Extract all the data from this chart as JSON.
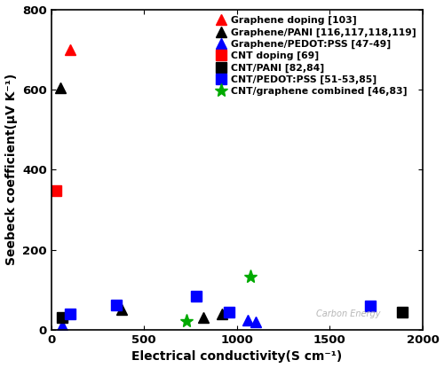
{
  "title": "",
  "xlabel": "Electrical conductivity(S cm⁻¹)",
  "ylabel": "Seebeck coefficient(μV K⁻¹)",
  "xlim": [
    0,
    2000
  ],
  "ylim": [
    0,
    800
  ],
  "xticks": [
    0,
    500,
    1000,
    1500,
    2000
  ],
  "yticks": [
    0,
    200,
    400,
    600,
    800
  ],
  "watermark": "Carbon Energy",
  "series": [
    {
      "label": "Graphene doping [103]",
      "color": "#ff0000",
      "marker": "^",
      "markersize": 8,
      "x": [
        100
      ],
      "y": [
        700
      ]
    },
    {
      "label": "Graphene/PANI [116,117,118,119]",
      "color": "#000000",
      "marker": "^",
      "markersize": 8,
      "x": [
        50,
        380,
        820,
        920
      ],
      "y": [
        605,
        50,
        30,
        40
      ]
    },
    {
      "label": "Graphene/PEDOT:PSS [47-49]",
      "color": "#0000ff",
      "marker": "^",
      "markersize": 8,
      "x": [
        60,
        1060,
        1100
      ],
      "y": [
        12,
        25,
        20
      ]
    },
    {
      "label": "CNT doping [69]",
      "color": "#ff0000",
      "marker": "s",
      "markersize": 8,
      "x": [
        25
      ],
      "y": [
        348
      ]
    },
    {
      "label": "CNT/PANI [82,84]",
      "color": "#000000",
      "marker": "s",
      "markersize": 8,
      "x": [
        60,
        1890
      ],
      "y": [
        32,
        45
      ]
    },
    {
      "label": "CNT/PEDOT:PSS [51-53,85]",
      "color": "#0000ff",
      "marker": "s",
      "markersize": 8,
      "x": [
        100,
        350,
        780,
        960,
        1720
      ],
      "y": [
        40,
        62,
        85,
        45,
        60
      ]
    },
    {
      "label": "CNT/graphene combined [46,83]",
      "color": "#00aa00",
      "marker": "*",
      "markersize": 11,
      "x": [
        730,
        1070
      ],
      "y": [
        22,
        132
      ]
    }
  ]
}
